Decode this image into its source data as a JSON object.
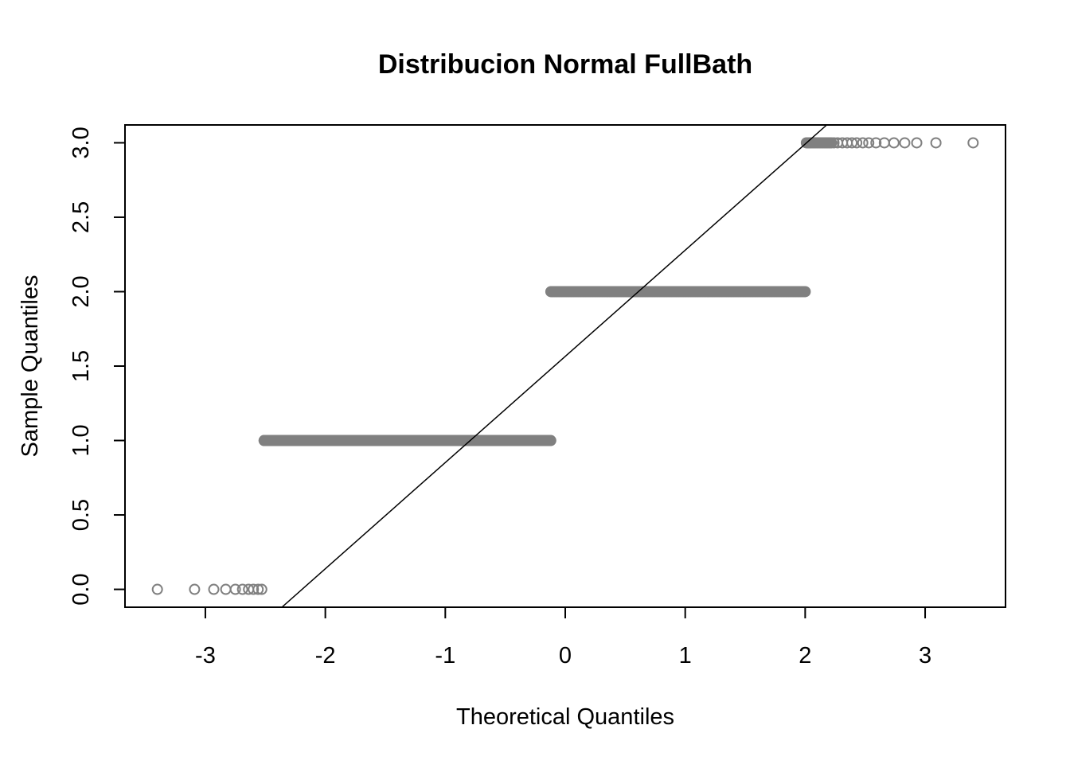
{
  "chart_data": {
    "type": "scatter",
    "subtype": "normal-qq-plot",
    "title": "Distribucion Normal FullBath",
    "xlabel": "Theoretical Quantiles",
    "ylabel": "Sample Quantiles",
    "xlim": [
      -3.67,
      3.67
    ],
    "ylim": [
      -0.12,
      3.12
    ],
    "x_ticks": [
      -3,
      -2,
      -1,
      0,
      1,
      2,
      3
    ],
    "x_tick_labels": [
      "-3",
      "-2",
      "-1",
      "0",
      "1",
      "2",
      "3"
    ],
    "y_ticks": [
      0,
      0.5,
      1,
      1.5,
      2,
      2.5,
      3
    ],
    "y_tick_labels": [
      "0.0",
      "0.5",
      "1.0",
      "1.5",
      "2.0",
      "2.5",
      "3.0"
    ],
    "grid": false,
    "legend": "none",
    "point_color": "#808080",
    "line_color": "#000000",
    "point_shape": "open-circle",
    "series": [
      {
        "sample_value": 0,
        "x": [
          -3.4,
          -3.09,
          -2.93,
          -2.83,
          -2.75,
          -2.69,
          -2.64,
          -2.6,
          -2.56,
          -2.53
        ]
      },
      {
        "sample_value": 1,
        "x_range": [
          -2.51,
          -0.12
        ],
        "sparse_left_x": [
          -2.51,
          -2.47,
          -2.44,
          -2.42,
          -2.4,
          -2.38,
          -2.36,
          -2.35,
          -2.34,
          -2.33
        ]
      },
      {
        "sample_value": 2,
        "x_range": [
          -0.12,
          2.01
        ]
      },
      {
        "sample_value": 3,
        "x_range": [
          2.01,
          2.22
        ],
        "sparse_right_x": [
          2.24,
          2.27,
          2.31,
          2.35,
          2.39,
          2.43,
          2.48,
          2.53,
          2.59,
          2.66,
          2.74,
          2.83,
          2.93,
          3.09,
          3.4
        ]
      }
    ],
    "reference_line": {
      "intercept": 1.5652,
      "slope": 0.7134
    }
  }
}
